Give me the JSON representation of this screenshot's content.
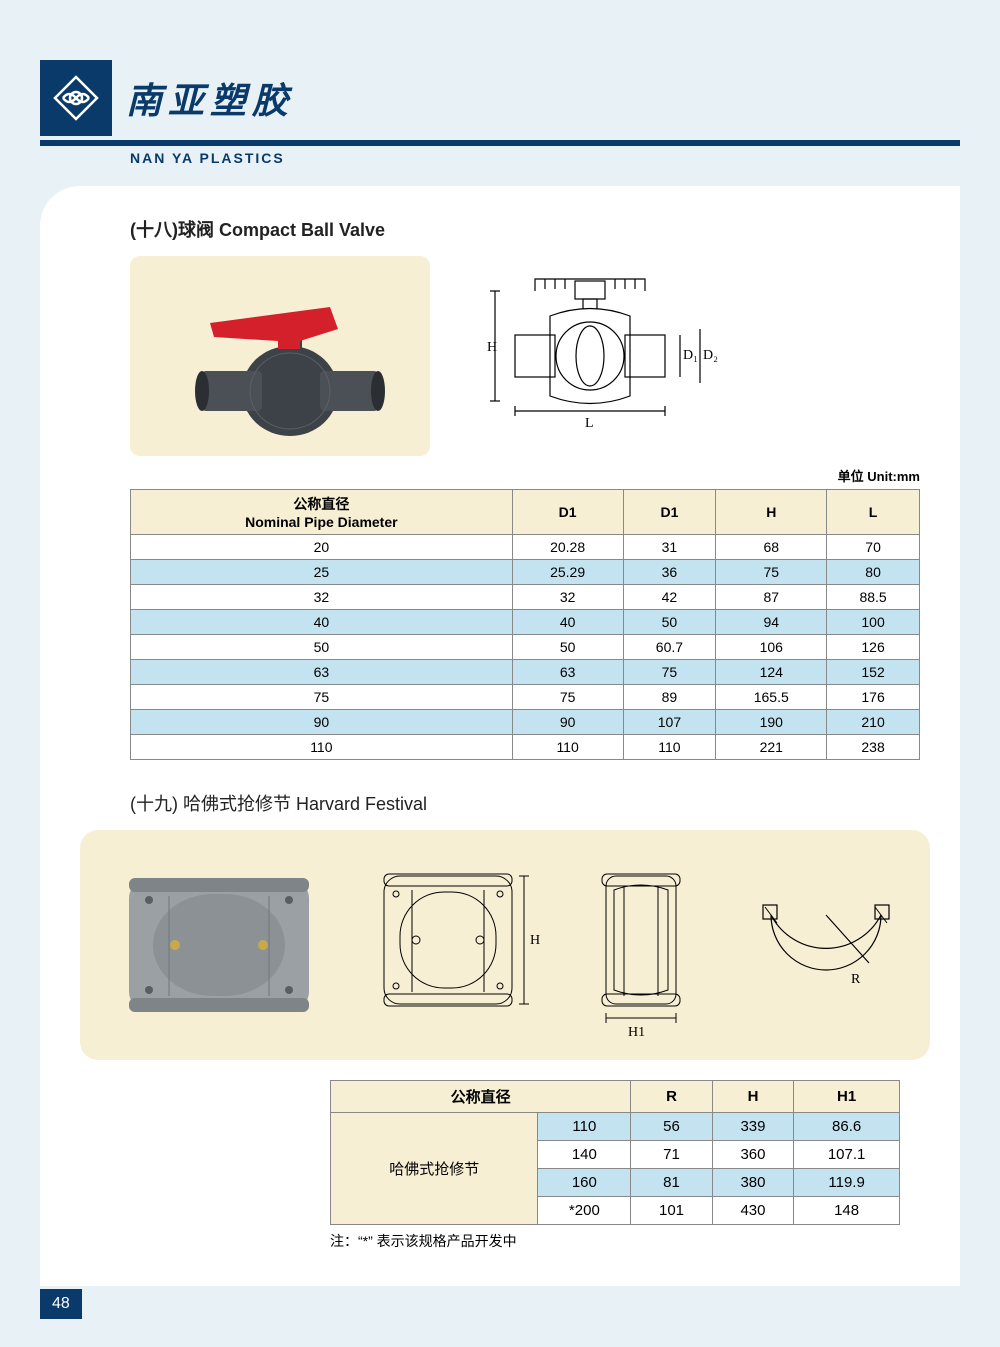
{
  "company": {
    "name_cn": "南亚塑胶",
    "name_en": "NAN YA PLASTICS",
    "brand_color": "#0a3a6a"
  },
  "page_number": "48",
  "section1": {
    "title": "(十八)球阀 Compact Ball Valve",
    "unit_label": "单位 Unit:mm",
    "diagram_labels": {
      "H": "H",
      "L": "L",
      "D1": "D₁",
      "D2": "D₂"
    },
    "table": {
      "columns": [
        "公称直径\nNominal Pipe Diameter",
        "D1",
        "D1",
        "H",
        "L"
      ],
      "rows": [
        [
          "20",
          "20.28",
          "31",
          "68",
          "70"
        ],
        [
          "25",
          "25.29",
          "36",
          "75",
          "80"
        ],
        [
          "32",
          "32",
          "42",
          "87",
          "88.5"
        ],
        [
          "40",
          "40",
          "50",
          "94",
          "100"
        ],
        [
          "50",
          "50",
          "60.7",
          "106",
          "126"
        ],
        [
          "63",
          "63",
          "75",
          "124",
          "152"
        ],
        [
          "75",
          "75",
          "89",
          "165.5",
          "176"
        ],
        [
          "90",
          "90",
          "107",
          "190",
          "210"
        ],
        [
          "110",
          "110",
          "110",
          "221",
          "238"
        ]
      ],
      "header_bg": "#f7efd4",
      "alt_row_bg": "#c3e3f0",
      "border_color": "#888888"
    }
  },
  "section2": {
    "title": "(十九) 哈佛式抢修节 Harvard Festival",
    "diagram_labels": {
      "H": "H",
      "H1": "H1",
      "R": "R"
    },
    "table": {
      "header_main": "公称直径",
      "header_cols": [
        "R",
        "H",
        "H1"
      ],
      "row_label": "哈佛式抢修节",
      "rows": [
        [
          "110",
          "56",
          "339",
          "86.6"
        ],
        [
          "140",
          "71",
          "360",
          "107.1"
        ],
        [
          "160",
          "81",
          "380",
          "119.9"
        ],
        [
          "*200",
          "101",
          "430",
          "148"
        ]
      ],
      "header_bg": "#f7efd4",
      "alt_row_bg": "#c3e3f0"
    },
    "footnote": "注：“*” 表示该规格产品开发中"
  },
  "colors": {
    "page_bg": "#e8f2f6",
    "panel_bg": "#f7efd4",
    "content_bg": "#ffffff"
  }
}
